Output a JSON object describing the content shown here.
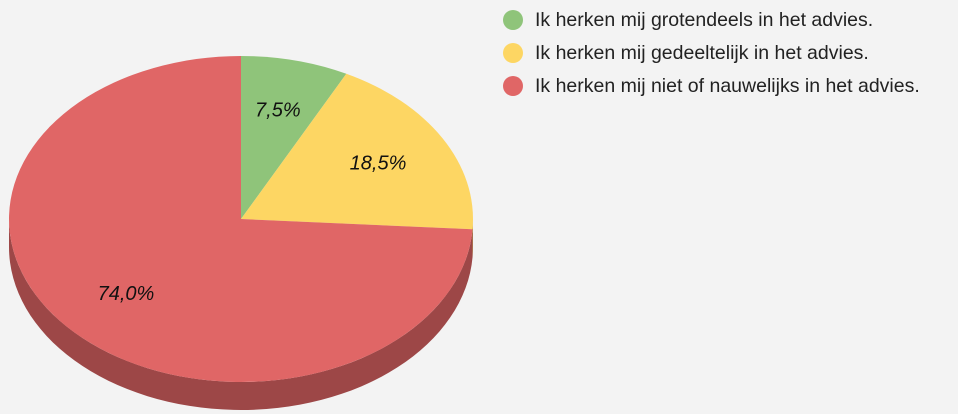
{
  "chart_data": {
    "type": "pie",
    "categories": [
      "Ik herken mij grotendeels in het advies.",
      "Ik herken mij gedeeltelijk in het advies.",
      "Ik herken mij niet of nauwelijks in het advies."
    ],
    "values": [
      7.5,
      18.5,
      74.0
    ],
    "value_labels": [
      "7,5%",
      "18,5%",
      "74,0%"
    ],
    "colors": [
      "#8fc47a",
      "#fdd663",
      "#e06666"
    ],
    "legend": "right"
  }
}
